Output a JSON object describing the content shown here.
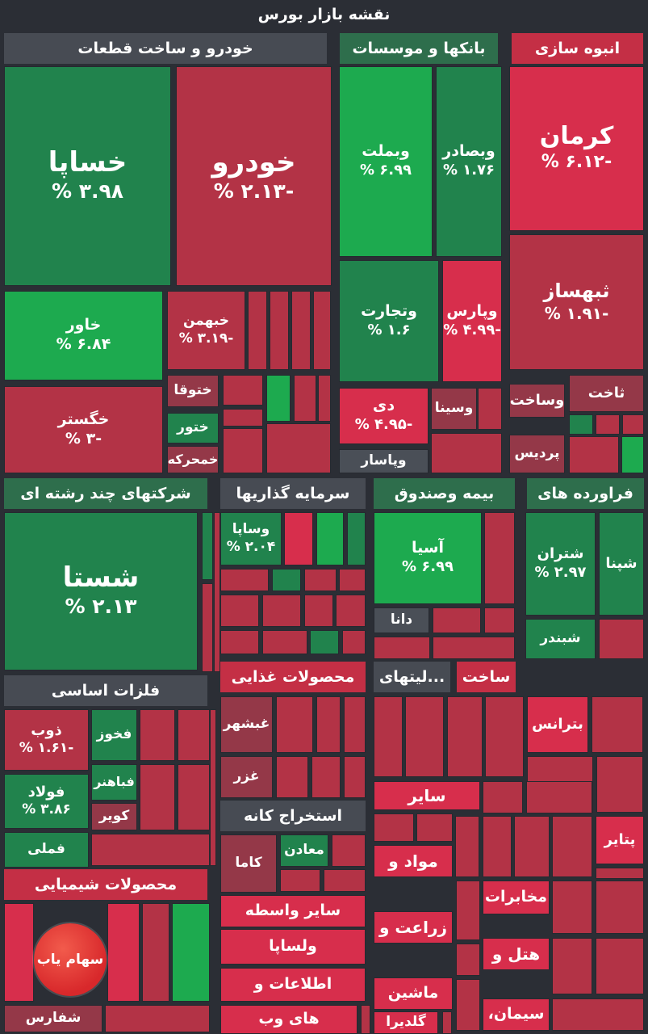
{
  "title": "نقشه بازار بورس",
  "logo_text": "سهام یاب",
  "colors": {
    "pos_strong": "#1daa4f",
    "pos": "#21834d",
    "pos_dark": "#2a6b4b",
    "neg_strong": "#d72e4c",
    "neg": "#b33346",
    "neg_dark": "#943848",
    "neutral": "#4a4f57",
    "sector": "#474b53",
    "sector_pos": "#2e6e4c",
    "sector_neg": "#c42f45"
  },
  "chart_data": {
    "type": "treemap",
    "title": "نقشه بازار بورس",
    "sectors": [
      {
        "name": "خودرو و ساخت قطعات",
        "tiles": [
          {
            "name": "خساپا",
            "change": "3.98 %",
            "value": 3.98
          },
          {
            "name": "خودرو",
            "change": "-2.13 %",
            "value": -2.13
          },
          {
            "name": "خاور",
            "change": "6.84 %",
            "value": 6.84
          },
          {
            "name": "خبهمن",
            "change": "-3.19 %",
            "value": -3.19
          },
          {
            "name": "خگستر",
            "change": "-3 %",
            "value": -3
          },
          {
            "name": "ختوقا",
            "change": "",
            "value": -1
          },
          {
            "name": "ختور",
            "change": "",
            "value": 1
          },
          {
            "name": "خمحرکه",
            "change": "",
            "value": -1
          }
        ]
      },
      {
        "name": "بانکها و موسسات",
        "tiles": [
          {
            "name": "وبملت",
            "change": "6.99 %",
            "value": 6.99
          },
          {
            "name": "وبصادر",
            "change": "1.76 %",
            "value": 1.76
          },
          {
            "name": "وتجارت",
            "change": "1.6 %",
            "value": 1.6
          },
          {
            "name": "وپارس",
            "change": "-4.99 %",
            "value": -4.99
          },
          {
            "name": "دی",
            "change": "-4.95 %",
            "value": -4.95
          },
          {
            "name": "وسینا",
            "change": "",
            "value": -1
          },
          {
            "name": "وپاسار",
            "change": "",
            "value": 0
          }
        ]
      },
      {
        "name": "انبوه سازی",
        "tiles": [
          {
            "name": "کرمان",
            "change": "-6.12 %",
            "value": -6.12
          },
          {
            "name": "ثبهساز",
            "change": "-1.91 %",
            "value": -1.91
          },
          {
            "name": "ثاخت",
            "change": "",
            "value": -1
          },
          {
            "name": "وساخت",
            "change": "",
            "value": -1
          },
          {
            "name": "پردیس",
            "change": "",
            "value": -1
          }
        ]
      },
      {
        "name": "شرکتهای چند رشته ای",
        "tiles": [
          {
            "name": "شستا",
            "change": "2.13 %",
            "value": 2.13
          }
        ]
      },
      {
        "name": "سرمایه گذاریها",
        "tiles": [
          {
            "name": "وساپا",
            "change": "2.04 %",
            "value": 2.04
          }
        ]
      },
      {
        "name": "بیمه وصندوق",
        "tiles": [
          {
            "name": "آسیا",
            "change": "6.99 %",
            "value": 6.99
          },
          {
            "name": "دانا",
            "change": "",
            "value": 0
          }
        ]
      },
      {
        "name": "فراورده های",
        "tiles": [
          {
            "name": "شتران",
            "change": "2.97 %",
            "value": 2.97
          },
          {
            "name": "شپنا",
            "change": "",
            "value": 1
          },
          {
            "name": "شبندر",
            "change": "",
            "value": 1
          }
        ]
      },
      {
        "name": "فلزات اساسی",
        "tiles": [
          {
            "name": "ذوب",
            "change": "-1.61 %",
            "value": -1.61
          },
          {
            "name": "فولاد",
            "change": "3.86 %",
            "value": 3.86
          },
          {
            "name": "فخوز",
            "change": "",
            "value": 1
          },
          {
            "name": "فباهنر",
            "change": "",
            "value": 1
          },
          {
            "name": "کویر",
            "change": "",
            "value": -1
          },
          {
            "name": "فملی",
            "change": "",
            "value": 1
          }
        ]
      },
      {
        "name": "محصولات غذایی",
        "tiles": [
          {
            "name": "غبشهر",
            "change": "",
            "value": -1
          },
          {
            "name": "غزر",
            "change": "",
            "value": -1
          }
        ]
      },
      {
        "name": "...لیتهای",
        "tiles": []
      },
      {
        "name": "ساخت",
        "tiles": []
      },
      {
        "name": "بترانس",
        "tiles": []
      },
      {
        "name": "استخراج کانه",
        "tiles": [
          {
            "name": "معادن",
            "change": "",
            "value": 1
          },
          {
            "name": "کاما",
            "change": "",
            "value": -1
          }
        ]
      },
      {
        "name": "محصولات شیمیایی",
        "tiles": [
          {
            "name": "شفارس",
            "change": "",
            "value": -1
          }
        ]
      },
      {
        "name": "سایر",
        "tiles": []
      },
      {
        "name": "مواد و",
        "tiles": []
      },
      {
        "name": "پتایر",
        "tiles": []
      },
      {
        "name": "مخابرات",
        "tiles": []
      },
      {
        "name": "سایر واسطه",
        "tiles": []
      },
      {
        "name": "زراعت و",
        "tiles": []
      },
      {
        "name": "هتل و",
        "tiles": []
      },
      {
        "name": "ولساپا",
        "tiles": []
      },
      {
        "name": "اطلاعات و",
        "tiles": []
      },
      {
        "name": "ماشین",
        "tiles": []
      },
      {
        "name": "سیمان،",
        "tiles": []
      },
      {
        "name": "های وب",
        "tiles": []
      },
      {
        "name": "گلدیرا",
        "tiles": []
      }
    ]
  }
}
